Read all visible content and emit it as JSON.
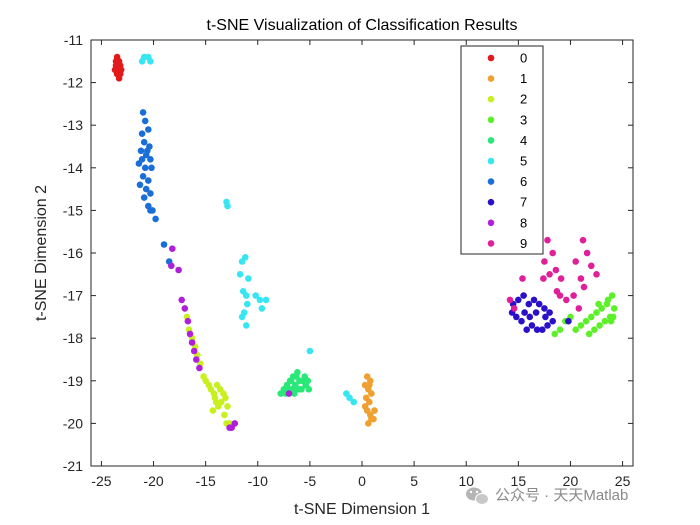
{
  "chart_data": {
    "type": "scatter",
    "title": "t-SNE Visualization of Classification Results",
    "xlabel": "t-SNE Dimension 1",
    "ylabel": "t-SNE Dimension 2",
    "xlim": [
      -26,
      26
    ],
    "ylim": [
      -21,
      -11
    ],
    "xticks": [
      -25,
      -20,
      -15,
      -10,
      -5,
      0,
      5,
      10,
      15,
      20,
      25
    ],
    "yticks": [
      -21,
      -20,
      -19,
      -18,
      -17,
      -16,
      -15,
      -14,
      -13,
      -12,
      -11
    ],
    "xtick_labels": [
      "-25",
      "-20",
      "-15",
      "-10",
      "-5",
      "0",
      "5",
      "10",
      "15",
      "20",
      "25"
    ],
    "ytick_labels": [
      "-21",
      "-20",
      "-19",
      "-18",
      "-17",
      "-16",
      "-15",
      "-14",
      "-13",
      "-12",
      "-11"
    ],
    "grid": false,
    "legend_position": "top-right",
    "series": [
      {
        "name": "0",
        "color": "#e31a1c",
        "points": [
          [
            -23.5,
            -11.4
          ],
          [
            -23.3,
            -11.5
          ],
          [
            -23.6,
            -11.6
          ],
          [
            -23.2,
            -11.6
          ],
          [
            -23.7,
            -11.7
          ],
          [
            -23.4,
            -11.7
          ],
          [
            -23.1,
            -11.7
          ],
          [
            -23.5,
            -11.8
          ],
          [
            -23.3,
            -11.9
          ],
          [
            -23.6,
            -11.5
          ],
          [
            -23.4,
            -11.6
          ],
          [
            -23.2,
            -11.8
          ]
        ]
      },
      {
        "name": "1",
        "color": "#f0a030",
        "points": [
          [
            0.5,
            -18.9
          ],
          [
            0.8,
            -19.0
          ],
          [
            0.3,
            -19.1
          ],
          [
            0.6,
            -19.2
          ],
          [
            0.9,
            -19.3
          ],
          [
            0.4,
            -19.4
          ],
          [
            0.7,
            -19.5
          ],
          [
            0.5,
            -19.7
          ],
          [
            0.8,
            -19.8
          ],
          [
            1.1,
            -19.9
          ],
          [
            0.6,
            -20.0
          ],
          [
            0.9,
            -19.9
          ],
          [
            1.2,
            -19.7
          ],
          [
            0.3,
            -19.6
          ],
          [
            0.7,
            -19.1
          ]
        ]
      },
      {
        "name": "2",
        "color": "#c8f020",
        "points": [
          [
            -17.0,
            -17.3
          ],
          [
            -16.8,
            -17.5
          ],
          [
            -16.6,
            -17.8
          ],
          [
            -16.3,
            -18.0
          ],
          [
            -16.0,
            -18.2
          ],
          [
            -15.8,
            -18.4
          ],
          [
            -15.5,
            -18.6
          ],
          [
            -15.2,
            -18.9
          ],
          [
            -15.0,
            -19.0
          ],
          [
            -14.7,
            -19.1
          ],
          [
            -14.5,
            -19.2
          ],
          [
            -14.2,
            -19.3
          ],
          [
            -13.9,
            -19.1
          ],
          [
            -13.6,
            -19.2
          ],
          [
            -13.3,
            -19.3
          ],
          [
            -14.0,
            -19.5
          ],
          [
            -13.8,
            -19.6
          ],
          [
            -14.3,
            -19.7
          ],
          [
            -13.5,
            -19.5
          ],
          [
            -13.1,
            -19.4
          ],
          [
            -12.9,
            -19.6
          ],
          [
            -13.2,
            -19.8
          ],
          [
            -13.0,
            -20.0
          ],
          [
            -12.7,
            -20.0
          ],
          [
            -14.1,
            -19.4
          ]
        ]
      },
      {
        "name": "3",
        "color": "#5cf028",
        "points": [
          [
            18.5,
            -17.9
          ],
          [
            19.0,
            -17.8
          ],
          [
            19.5,
            -17.6
          ],
          [
            20.0,
            -17.5
          ],
          [
            20.5,
            -17.8
          ],
          [
            21.0,
            -17.7
          ],
          [
            21.5,
            -17.6
          ],
          [
            22.0,
            -17.5
          ],
          [
            22.5,
            -17.4
          ],
          [
            23.0,
            -17.3
          ],
          [
            23.5,
            -17.2
          ],
          [
            24.0,
            -17.0
          ],
          [
            24.2,
            -17.3
          ],
          [
            23.8,
            -17.5
          ],
          [
            23.3,
            -17.6
          ],
          [
            22.8,
            -17.7
          ],
          [
            22.3,
            -17.8
          ],
          [
            24.1,
            -17.5
          ],
          [
            23.6,
            -17.1
          ],
          [
            22.7,
            -17.2
          ],
          [
            21.8,
            -17.9
          ],
          [
            23.9,
            -17.6
          ]
        ]
      },
      {
        "name": "4",
        "color": "#28e878",
        "points": [
          [
            -7.8,
            -19.3
          ],
          [
            -7.5,
            -19.2
          ],
          [
            -7.2,
            -19.1
          ],
          [
            -6.9,
            -19.0
          ],
          [
            -6.6,
            -18.9
          ],
          [
            -6.3,
            -18.9
          ],
          [
            -6.0,
            -19.0
          ],
          [
            -5.7,
            -19.0
          ],
          [
            -5.4,
            -19.1
          ],
          [
            -5.1,
            -19.2
          ],
          [
            -5.4,
            -19.0
          ],
          [
            -6.1,
            -19.2
          ],
          [
            -6.4,
            -19.1
          ],
          [
            -6.7,
            -19.2
          ],
          [
            -7.0,
            -19.2
          ],
          [
            -5.8,
            -19.2
          ],
          [
            -6.2,
            -18.8
          ],
          [
            -5.5,
            -18.9
          ],
          [
            -6.8,
            -19.0
          ],
          [
            -7.3,
            -19.3
          ],
          [
            -5.2,
            -19.0
          ],
          [
            -6.5,
            -19.3
          ]
        ]
      },
      {
        "name": "5",
        "color": "#36e6f0",
        "points": [
          [
            -20.9,
            -11.4
          ],
          [
            -20.5,
            -11.4
          ],
          [
            -21.1,
            -11.5
          ],
          [
            -20.3,
            -11.5
          ],
          [
            -13.0,
            -14.8
          ],
          [
            -12.9,
            -14.9
          ],
          [
            -11.2,
            -16.1
          ],
          [
            -11.5,
            -16.2
          ],
          [
            -11.7,
            -16.5
          ],
          [
            -10.9,
            -16.6
          ],
          [
            -11.4,
            -16.9
          ],
          [
            -11.1,
            -17.0
          ],
          [
            -10.2,
            -17.0
          ],
          [
            -11.0,
            -17.2
          ],
          [
            -11.3,
            -17.4
          ],
          [
            -9.8,
            -17.1
          ],
          [
            -9.2,
            -17.1
          ],
          [
            -9.6,
            -17.3
          ],
          [
            -11.5,
            -17.5
          ],
          [
            -11.1,
            -17.7
          ],
          [
            -5.0,
            -18.3
          ],
          [
            -1.5,
            -19.3
          ],
          [
            -1.2,
            -19.4
          ],
          [
            -0.8,
            -19.5
          ]
        ]
      },
      {
        "name": "6",
        "color": "#1a6ed8",
        "points": [
          [
            -21.0,
            -12.7
          ],
          [
            -20.8,
            -12.9
          ],
          [
            -20.5,
            -13.1
          ],
          [
            -21.1,
            -13.2
          ],
          [
            -20.9,
            -13.4
          ],
          [
            -20.4,
            -13.5
          ],
          [
            -21.2,
            -13.6
          ],
          [
            -20.7,
            -13.7
          ],
          [
            -20.3,
            -13.8
          ],
          [
            -21.4,
            -13.9
          ],
          [
            -20.8,
            -14.0
          ],
          [
            -20.2,
            -14.0
          ],
          [
            -21.0,
            -14.2
          ],
          [
            -20.5,
            -14.3
          ],
          [
            -21.3,
            -14.4
          ],
          [
            -20.7,
            -14.5
          ],
          [
            -20.3,
            -14.6
          ],
          [
            -20.9,
            -14.7
          ],
          [
            -20.5,
            -14.9
          ],
          [
            -20.1,
            -15.0
          ],
          [
            -19.8,
            -15.2
          ],
          [
            -20.3,
            -15.0
          ],
          [
            -21.1,
            -13.8
          ],
          [
            -20.6,
            -13.6
          ],
          [
            -19.0,
            -15.8
          ],
          [
            -18.5,
            -16.2
          ]
        ]
      },
      {
        "name": "7",
        "color": "#2a10c8",
        "points": [
          [
            14.5,
            -17.2
          ],
          [
            15.0,
            -17.1
          ],
          [
            15.5,
            -17.0
          ],
          [
            16.0,
            -17.2
          ],
          [
            16.5,
            -17.1
          ],
          [
            17.0,
            -17.2
          ],
          [
            17.5,
            -17.3
          ],
          [
            18.0,
            -17.4
          ],
          [
            18.3,
            -17.6
          ],
          [
            17.8,
            -17.7
          ],
          [
            17.3,
            -17.8
          ],
          [
            16.8,
            -17.8
          ],
          [
            16.3,
            -17.7
          ],
          [
            15.8,
            -17.8
          ],
          [
            15.3,
            -17.6
          ],
          [
            14.8,
            -17.5
          ],
          [
            14.4,
            -17.4
          ],
          [
            15.6,
            -17.4
          ],
          [
            16.7,
            -17.4
          ],
          [
            17.6,
            -17.5
          ],
          [
            16.1,
            -17.5
          ],
          [
            19.8,
            -17.6
          ]
        ]
      },
      {
        "name": "8",
        "color": "#b020d8",
        "points": [
          [
            -18.2,
            -15.9
          ],
          [
            -18.3,
            -16.3
          ],
          [
            -17.6,
            -16.4
          ],
          [
            -17.3,
            -17.1
          ],
          [
            -17.0,
            -17.3
          ],
          [
            -16.7,
            -17.6
          ],
          [
            -16.5,
            -17.9
          ],
          [
            -16.3,
            -18.1
          ],
          [
            -16.1,
            -18.3
          ],
          [
            -15.9,
            -18.5
          ],
          [
            -15.6,
            -18.7
          ],
          [
            -7.0,
            -19.3
          ],
          [
            -12.5,
            -20.1
          ],
          [
            -12.2,
            -20.0
          ],
          [
            -12.7,
            -20.1
          ]
        ]
      },
      {
        "name": "9",
        "color": "#e0209a",
        "points": [
          [
            17.8,
            -15.7
          ],
          [
            18.3,
            -16.0
          ],
          [
            17.5,
            -16.2
          ],
          [
            18.6,
            -16.4
          ],
          [
            17.4,
            -16.6
          ],
          [
            18.0,
            -16.5
          ],
          [
            19.1,
            -16.6
          ],
          [
            18.7,
            -16.9
          ],
          [
            19.6,
            -17.1
          ],
          [
            19.0,
            -17.0
          ],
          [
            21.2,
            -15.7
          ],
          [
            21.6,
            -16.0
          ],
          [
            22.0,
            -16.3
          ],
          [
            22.5,
            -16.5
          ],
          [
            21.3,
            -16.8
          ],
          [
            20.5,
            -16.2
          ],
          [
            14.2,
            -17.1
          ],
          [
            14.6,
            -17.3
          ],
          [
            15.4,
            -16.6
          ],
          [
            20.3,
            -17.0
          ],
          [
            20.8,
            -17.3
          ],
          [
            21.0,
            -16.6
          ]
        ]
      }
    ]
  },
  "watermark": {
    "text": "公众号 · 天天Matlab",
    "icon": "wechat-icon"
  }
}
